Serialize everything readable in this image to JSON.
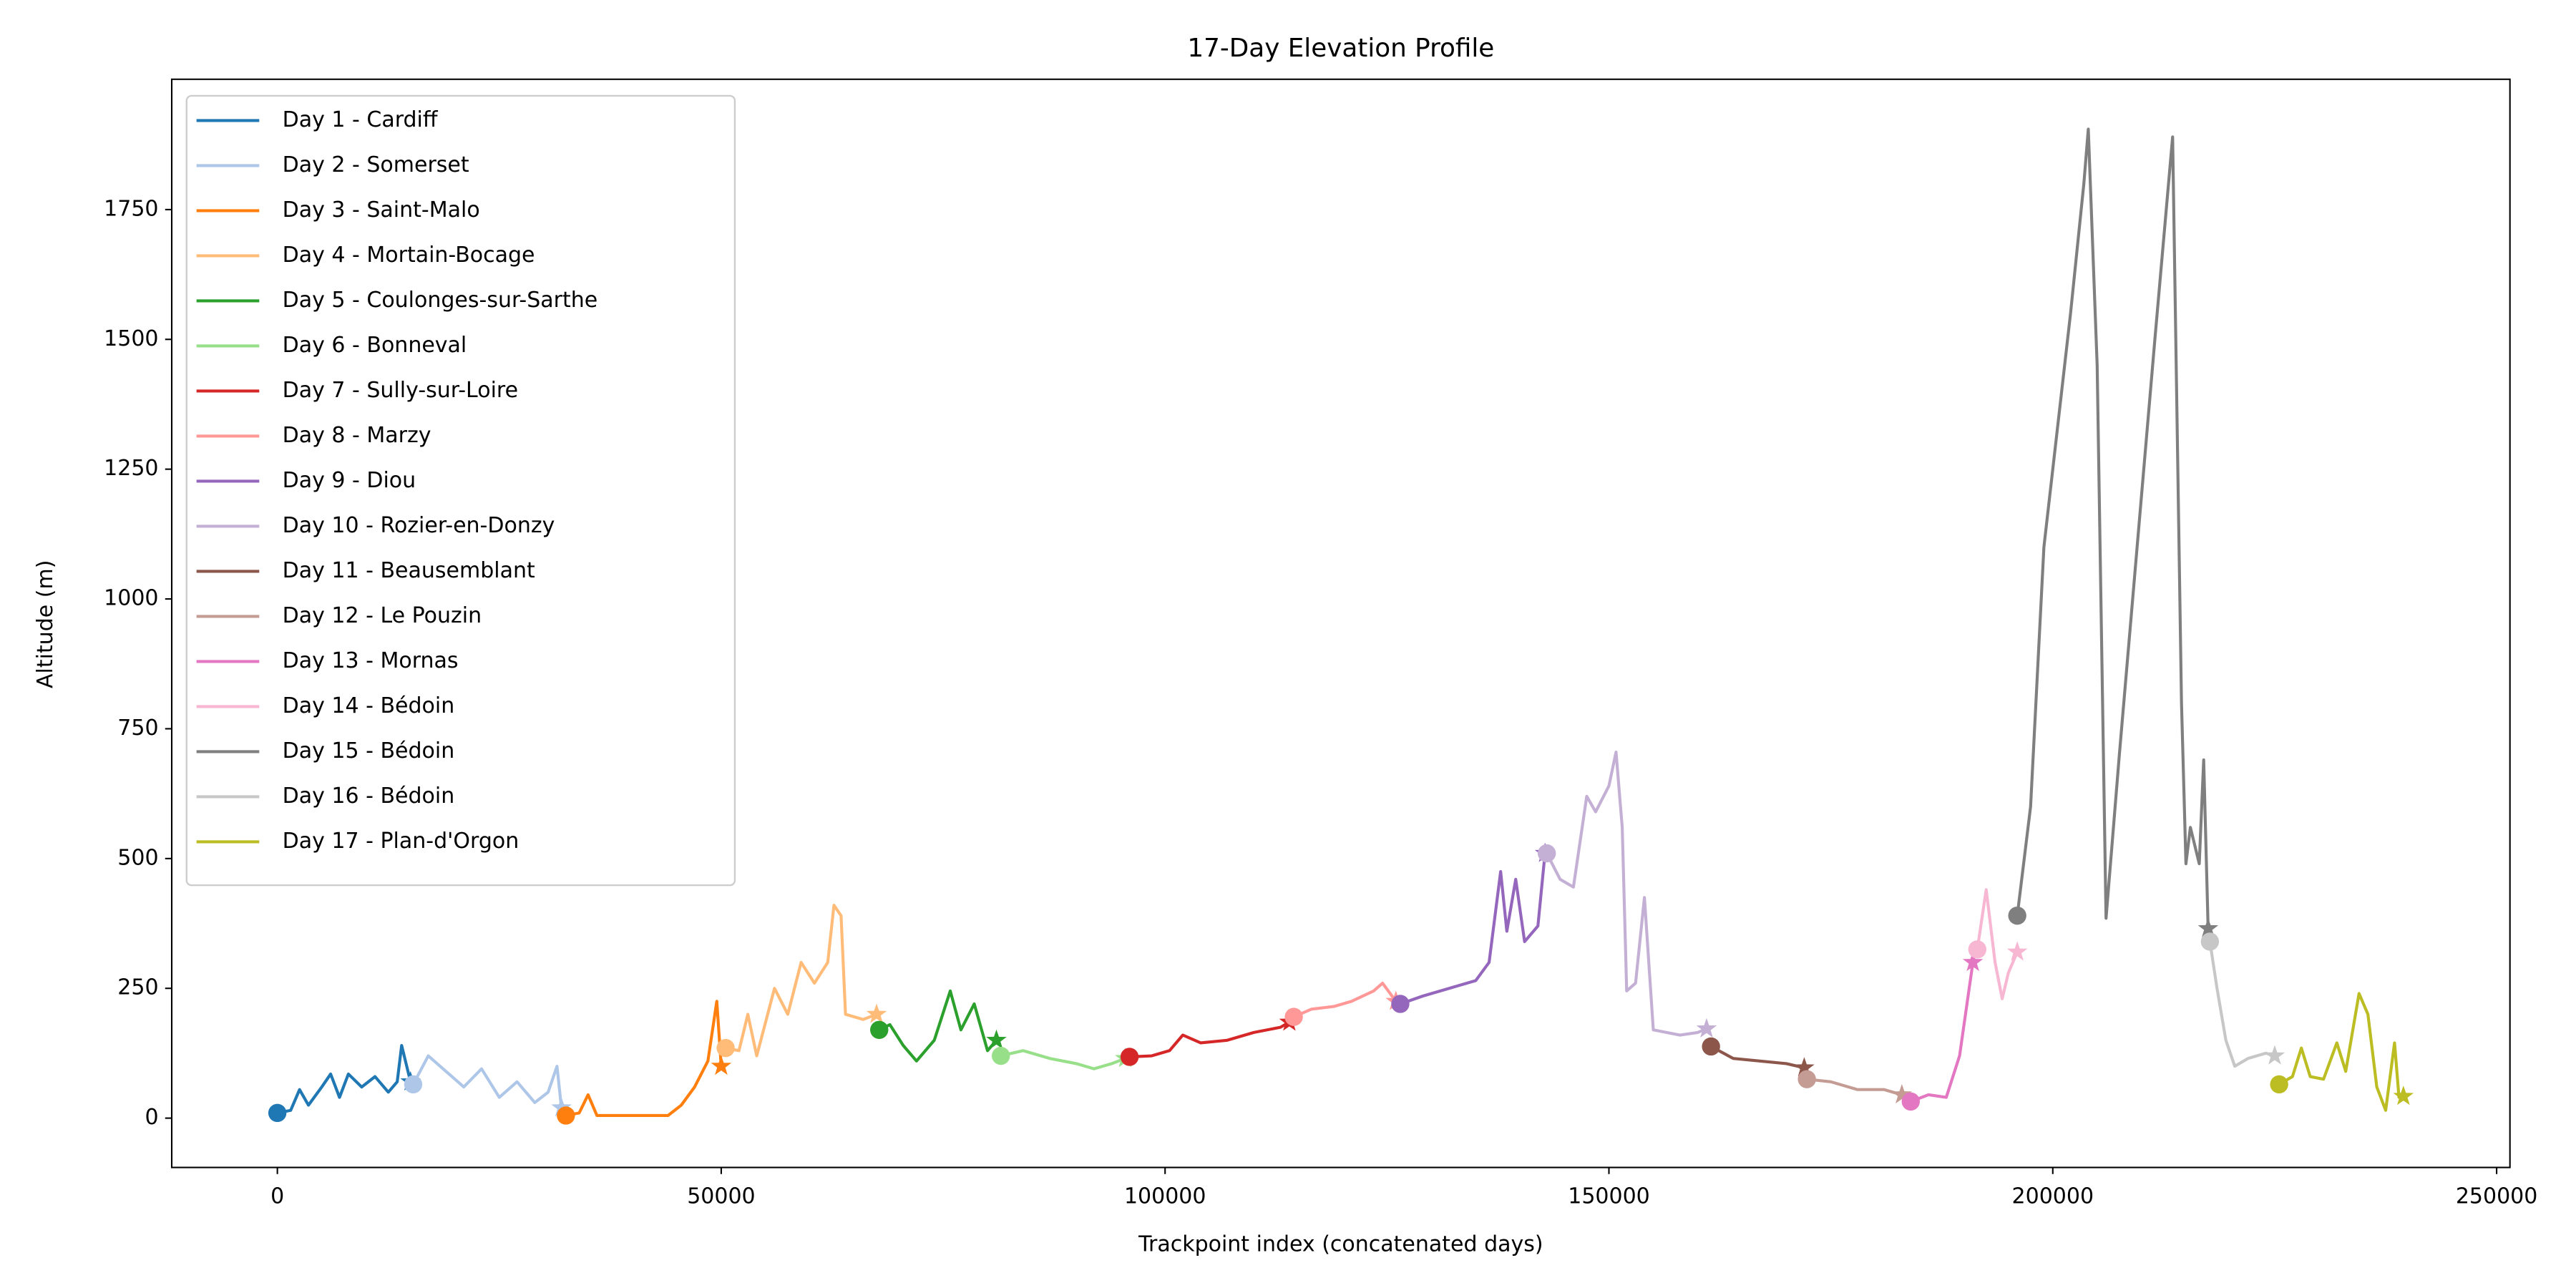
{
  "chart_data": {
    "type": "line",
    "title": "17-Day Elevation Profile",
    "x_label": "Trackpoint index (concatenated days)",
    "y_label": "Altitude (m)",
    "xlim": [
      -11900,
      251500
    ],
    "ylim": [
      -95,
      2001
    ],
    "xticks": [
      0,
      50000,
      100000,
      150000,
      200000,
      250000
    ],
    "yticks": [
      0,
      250,
      500,
      750,
      1000,
      1250,
      1500,
      1750
    ],
    "grid": false,
    "legend": "upper left",
    "start_marker": "circle",
    "end_marker": "star",
    "series": [
      {
        "name": "Day 1 - Cardiff",
        "color": "#1f77b4",
        "x": [
          0,
          1500,
          2500,
          3500,
          5000,
          6000,
          7000,
          8000,
          9500,
          11000,
          12500,
          13500,
          14000,
          15000
        ],
        "values": [
          10,
          15,
          55,
          25,
          60,
          85,
          40,
          85,
          60,
          80,
          50,
          70,
          140,
          70
        ]
      },
      {
        "name": "Day 2 - Somerset",
        "color": "#aec7e8",
        "x": [
          15300,
          17000,
          19000,
          21000,
          23000,
          25000,
          27000,
          29000,
          30500,
          31500,
          32000
        ],
        "values": [
          65,
          120,
          90,
          60,
          95,
          40,
          70,
          30,
          50,
          100,
          20
        ]
      },
      {
        "name": "Day 3 - Saint-Malo",
        "color": "#ff7f0e",
        "x": [
          32500,
          34000,
          35000,
          36000,
          40000,
          44000,
          45500,
          47000,
          48500,
          49500,
          50000
        ],
        "values": [
          5,
          10,
          45,
          5,
          5,
          5,
          25,
          60,
          110,
          225,
          100
        ]
      },
      {
        "name": "Day 4 - Mortain-Bocage",
        "color": "#ffbb78",
        "x": [
          50500,
          52000,
          53000,
          54000,
          56000,
          57500,
          59000,
          60500,
          62000,
          62700,
          63500,
          64000,
          66000,
          67500
        ],
        "values": [
          135,
          130,
          200,
          120,
          250,
          200,
          300,
          260,
          300,
          410,
          390,
          200,
          190,
          200
        ]
      },
      {
        "name": "Day 5 - Coulonges-sur-Sarthe",
        "color": "#2ca02c",
        "x": [
          67800,
          69000,
          70500,
          72000,
          74000,
          75800,
          77000,
          78500,
          80000,
          81000
        ],
        "values": [
          170,
          180,
          140,
          110,
          150,
          245,
          170,
          220,
          130,
          150
        ]
      },
      {
        "name": "Day 6 - Bonneval",
        "color": "#98df8a",
        "x": [
          81500,
          84000,
          87000,
          90000,
          92000,
          94000,
          95500
        ],
        "values": [
          120,
          130,
          115,
          105,
          95,
          105,
          115
        ]
      },
      {
        "name": "Day 7 - Sully-sur-Loire",
        "color": "#d62728",
        "x": [
          96000,
          98500,
          100500,
          102000,
          104000,
          107000,
          110000,
          113000,
          114000
        ],
        "values": [
          118,
          120,
          130,
          160,
          145,
          150,
          165,
          175,
          185
        ]
      },
      {
        "name": "Day 8 - Marzy",
        "color": "#ff9896",
        "x": [
          114500,
          116500,
          119000,
          121000,
          123500,
          124500,
          126000
        ],
        "values": [
          195,
          210,
          215,
          225,
          245,
          260,
          225
        ]
      },
      {
        "name": "Day 9 - Diou",
        "color": "#9467bd",
        "x": [
          126500,
          129000,
          132000,
          135000,
          136500,
          137800,
          138500,
          139500,
          140500,
          142000,
          142800
        ],
        "values": [
          220,
          235,
          250,
          265,
          300,
          475,
          360,
          460,
          340,
          370,
          510
        ]
      },
      {
        "name": "Day 10 - Rozier-en-Donzy",
        "color": "#c5b0d5",
        "x": [
          143000,
          144500,
          146000,
          147500,
          148500,
          150000,
          150800,
          151500,
          152000,
          153000,
          154000,
          155000,
          158000,
          160000,
          161000
        ],
        "values": [
          510,
          460,
          445,
          620,
          590,
          640,
          705,
          560,
          245,
          260,
          425,
          170,
          160,
          165,
          172
        ]
      },
      {
        "name": "Day 11 - Beausemblant",
        "color": "#8c564b",
        "x": [
          161500,
          164000,
          167000,
          170000,
          172000
        ],
        "values": [
          138,
          115,
          110,
          105,
          97
        ]
      },
      {
        "name": "Day 12 - Le Pouzin",
        "color": "#c49c94",
        "x": [
          172300,
          175000,
          178000,
          181000,
          183000
        ],
        "values": [
          75,
          70,
          55,
          55,
          45
        ]
      },
      {
        "name": "Day 13 - Mornas",
        "color": "#e377c2",
        "x": [
          184000,
          186000,
          188000,
          189500,
          191000
        ],
        "values": [
          32,
          45,
          40,
          120,
          300
        ]
      },
      {
        "name": "Day 14 - Bédoin",
        "color": "#f7b6d2",
        "x": [
          191500,
          192500,
          193500,
          194300,
          195000,
          196000
        ],
        "values": [
          325,
          440,
          300,
          230,
          280,
          320
        ]
      },
      {
        "name": "Day 15 - Bédoin",
        "color": "#7f7f7f",
        "x": [
          196000,
          197500,
          199000,
          202000,
          203500,
          204000,
          205000,
          206000,
          207500,
          209500,
          211500,
          213500,
          214500,
          215000,
          215500,
          216500,
          217000,
          217500
        ],
        "values": [
          390,
          600,
          1100,
          1550,
          1800,
          1905,
          1450,
          385,
          700,
          1100,
          1500,
          1890,
          800,
          490,
          560,
          490,
          690,
          365
        ]
      },
      {
        "name": "Day 16 - Bédoin",
        "color": "#c7c7c7",
        "x": [
          217700,
          218500,
          219500,
          220500,
          222000,
          224000,
          225000
        ],
        "values": [
          340,
          250,
          150,
          100,
          115,
          125,
          120
        ]
      },
      {
        "name": "Day 17 - Plan-d'Orgon",
        "color": "#bcbd22",
        "x": [
          225500,
          227000,
          228000,
          229000,
          230500,
          232000,
          233000,
          234500,
          235500,
          236500,
          237500,
          238500,
          239000,
          239500
        ],
        "values": [
          65,
          80,
          135,
          80,
          75,
          145,
          90,
          240,
          200,
          60,
          15,
          145,
          40,
          42
        ]
      }
    ]
  }
}
